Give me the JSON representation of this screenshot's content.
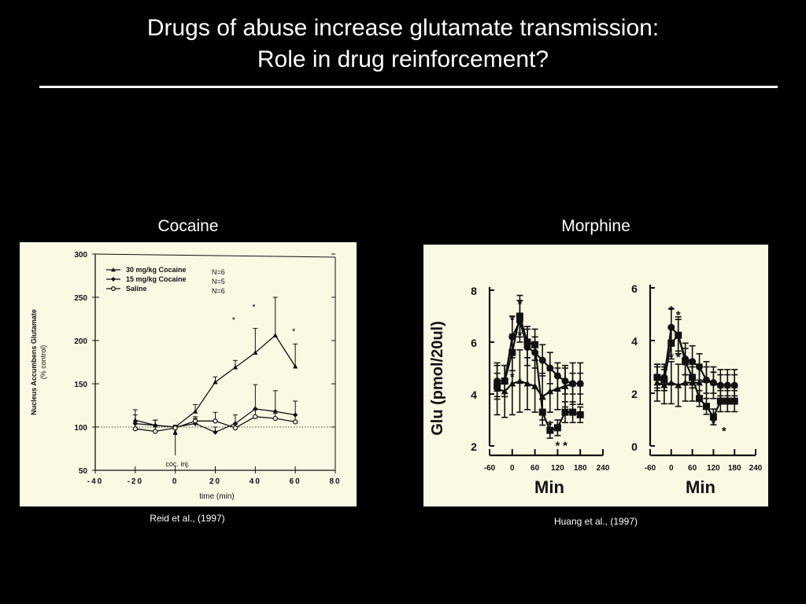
{
  "slide": {
    "title_line1": "Drugs of abuse increase glutamate transmission:",
    "title_line2": "Role in drug reinforcement?"
  },
  "left_panel": {
    "label": "Cocaine",
    "citation": "Reid et al., (1997)"
  },
  "right_panel": {
    "label": "Morphine",
    "citation": "Huang et al., (1997)"
  },
  "chart_data": [
    {
      "type": "line",
      "xlabel": "time  (min)",
      "ylabel_line1": "Nucleus Accumbens Glutamate",
      "ylabel_line2": "(%  control)",
      "xlim": [
        -40,
        80
      ],
      "ylim": [
        50,
        300
      ],
      "x_ticks": [
        -40,
        -20,
        0,
        20,
        40,
        60,
        80
      ],
      "x_tick_labels": [
        "-40",
        "-20",
        "0",
        "20",
        "40",
        "60",
        "80"
      ],
      "y_ticks": [
        50,
        100,
        150,
        200,
        250,
        300
      ],
      "y_tick_labels": [
        "50",
        "100",
        "150",
        "200",
        "250",
        "300"
      ],
      "baseline": 100,
      "annotation": "coc.  inj.",
      "annotation_x": 0,
      "legend": [
        {
          "label": "30  mg/kg  Cocaine",
          "n": "N=6",
          "marker": "triangle"
        },
        {
          "label": "15  mg/kg  Cocaine",
          "n": "N=5",
          "marker": "diamond"
        },
        {
          "label": "Saline",
          "n": "N=6",
          "marker": "open-circle"
        }
      ],
      "series": [
        {
          "name": "30  mg/kg  Cocaine",
          "marker": "triangle",
          "x": [
            -20,
            -10,
            0,
            10,
            20,
            30,
            40,
            50,
            60
          ],
          "y": [
            108,
            102,
            100,
            118,
            152,
            169,
            186,
            206,
            170
          ],
          "err": [
            12,
            6,
            2,
            8,
            6,
            8,
            28,
            44,
            26
          ]
        },
        {
          "name": "15  mg/kg  Cocaine",
          "marker": "diamond",
          "x": [
            -20,
            -10,
            0,
            10,
            20,
            30,
            40,
            50,
            60
          ],
          "y": [
            104,
            102,
            100,
            104,
            94,
            104,
            121,
            118,
            114
          ],
          "err": [
            10,
            6,
            2,
            6,
            6,
            10,
            28,
            24,
            16
          ]
        },
        {
          "name": "Saline",
          "marker": "open-circle",
          "x": [
            -20,
            -10,
            0,
            10,
            20,
            30,
            40,
            50,
            60
          ],
          "y": [
            98,
            95,
            99,
            107,
            107,
            99,
            112,
            110,
            106
          ],
          "err": [
            6,
            5,
            2,
            5,
            10,
            4,
            8,
            6,
            8
          ]
        }
      ],
      "significance": [
        {
          "x": 30,
          "y": 225,
          "label": "*"
        },
        {
          "x": 40,
          "y": 240,
          "label": "*"
        },
        {
          "x": 60,
          "y": 212,
          "label": "*"
        }
      ]
    },
    {
      "type": "line",
      "ylabel": "Glu  (pmol/20ul)",
      "xlabel_left": "Min",
      "xlabel_right": "Min",
      "subplots": [
        {
          "xlim": [
            -60,
            240
          ],
          "ylim": [
            2,
            8
          ],
          "x_ticks": [
            -60,
            0,
            60,
            120,
            180,
            240
          ],
          "x_tick_labels": [
            "-60",
            "0",
            "60",
            "120",
            "180",
            "240"
          ],
          "y_ticks": [
            2,
            4,
            6,
            8
          ],
          "y_tick_labels": [
            "2",
            "4",
            "6",
            "8"
          ],
          "series": [
            {
              "marker": "circle",
              "x": [
                -40,
                -20,
                0,
                20,
                40,
                60,
                80,
                100,
                120,
                140,
                160,
                180
              ],
              "y": [
                4.5,
                4.5,
                6.2,
                6.8,
                5.8,
                5.6,
                5.3,
                5.0,
                4.7,
                4.5,
                4.4,
                4.4
              ],
              "err": [
                0.6,
                0.6,
                0.8,
                0.8,
                0.7,
                0.6,
                0.6,
                0.6,
                0.5,
                0.5,
                0.4,
                0.4
              ]
            },
            {
              "marker": "square",
              "x": [
                -40,
                -20,
                0,
                20,
                40,
                60,
                80,
                100,
                120,
                140,
                160,
                180
              ],
              "y": [
                4.3,
                4.5,
                5.6,
                7.0,
                6.0,
                5.9,
                3.3,
                2.6,
                2.7,
                3.3,
                3.3,
                3.2
              ],
              "err": [
                0.5,
                0.6,
                0.7,
                0.8,
                0.6,
                0.6,
                0.5,
                0.3,
                0.3,
                0.4,
                0.4,
                0.3
              ]
            },
            {
              "marker": "triangle",
              "x": [
                -40,
                -20,
                0,
                20,
                40,
                60,
                80,
                100,
                120,
                140,
                160,
                180
              ],
              "y": [
                4.2,
                4.1,
                4.4,
                4.5,
                4.4,
                4.3,
                3.9,
                4.1,
                4.2,
                4.3,
                4.4,
                4.4
              ],
              "err": [
                1.0,
                1.0,
                1.2,
                1.2,
                1.0,
                1.0,
                0.9,
                0.8,
                0.8,
                0.8,
                0.8,
                0.8
              ]
            }
          ],
          "significance": [
            {
              "x": 0,
              "y": 6.9,
              "label": "*"
            },
            {
              "x": 20,
              "y": 7.5,
              "label": "*"
            },
            {
              "x": 0,
              "y": 4.7,
              "label": "*"
            },
            {
              "x": 20,
              "y": 6.3,
              "label": "*"
            },
            {
              "x": 120,
              "y": 2.05,
              "label": "*"
            },
            {
              "x": 140,
              "y": 2.05,
              "label": "*"
            },
            {
              "x": 100,
              "y": 2.85,
              "label": "*"
            }
          ]
        },
        {
          "xlim": [
            -60,
            240
          ],
          "ylim": [
            0,
            6
          ],
          "x_ticks": [
            -60,
            0,
            60,
            120,
            180,
            240
          ],
          "x_tick_labels": [
            "-60",
            "0",
            "60",
            "120",
            "180",
            "240"
          ],
          "y_ticks": [
            0,
            2,
            4,
            6
          ],
          "y_tick_labels": [
            "0",
            "2",
            "4",
            "6"
          ],
          "series": [
            {
              "marker": "circle",
              "x": [
                -40,
                -20,
                0,
                20,
                40,
                60,
                80,
                100,
                120,
                140,
                160,
                180
              ],
              "y": [
                2.6,
                2.6,
                4.5,
                4.2,
                3.3,
                3.2,
                3.0,
                2.5,
                2.4,
                2.3,
                2.3,
                2.3
              ],
              "err": [
                0.5,
                0.5,
                0.7,
                0.7,
                0.6,
                0.6,
                0.5,
                0.5,
                0.4,
                0.4,
                0.4,
                0.4
              ]
            },
            {
              "marker": "square",
              "x": [
                -40,
                -20,
                0,
                20,
                40,
                60,
                80,
                100,
                120,
                140,
                160,
                180
              ],
              "y": [
                2.6,
                2.5,
                3.9,
                4.2,
                3.2,
                2.6,
                1.8,
                1.5,
                1.1,
                1.7,
                1.7,
                1.7
              ],
              "err": [
                0.4,
                0.4,
                0.6,
                0.6,
                0.5,
                0.4,
                0.3,
                0.3,
                0.3,
                0.4,
                0.4,
                0.4
              ]
            },
            {
              "marker": "triangle",
              "x": [
                -40,
                -20,
                0,
                20,
                40,
                60,
                80,
                100,
                120,
                140,
                160,
                180
              ],
              "y": [
                2.4,
                2.3,
                2.4,
                2.3,
                2.4,
                2.4,
                2.4,
                2.5,
                2.4,
                2.3,
                2.3,
                2.3
              ],
              "err": [
                0.7,
                0.7,
                0.8,
                0.8,
                0.7,
                0.7,
                0.7,
                0.7,
                0.6,
                0.6,
                0.6,
                0.6
              ]
            }
          ],
          "significance": [
            {
              "x": 0,
              "y": 5.2,
              "label": "*"
            },
            {
              "x": 20,
              "y": 5.0,
              "label": "*"
            },
            {
              "x": 0,
              "y": 3.4,
              "label": "*"
            },
            {
              "x": 20,
              "y": 3.4,
              "label": "*"
            },
            {
              "x": 120,
              "y": 0.9,
              "label": "*"
            },
            {
              "x": 150,
              "y": 0.6,
              "label": "*"
            }
          ]
        }
      ]
    }
  ]
}
